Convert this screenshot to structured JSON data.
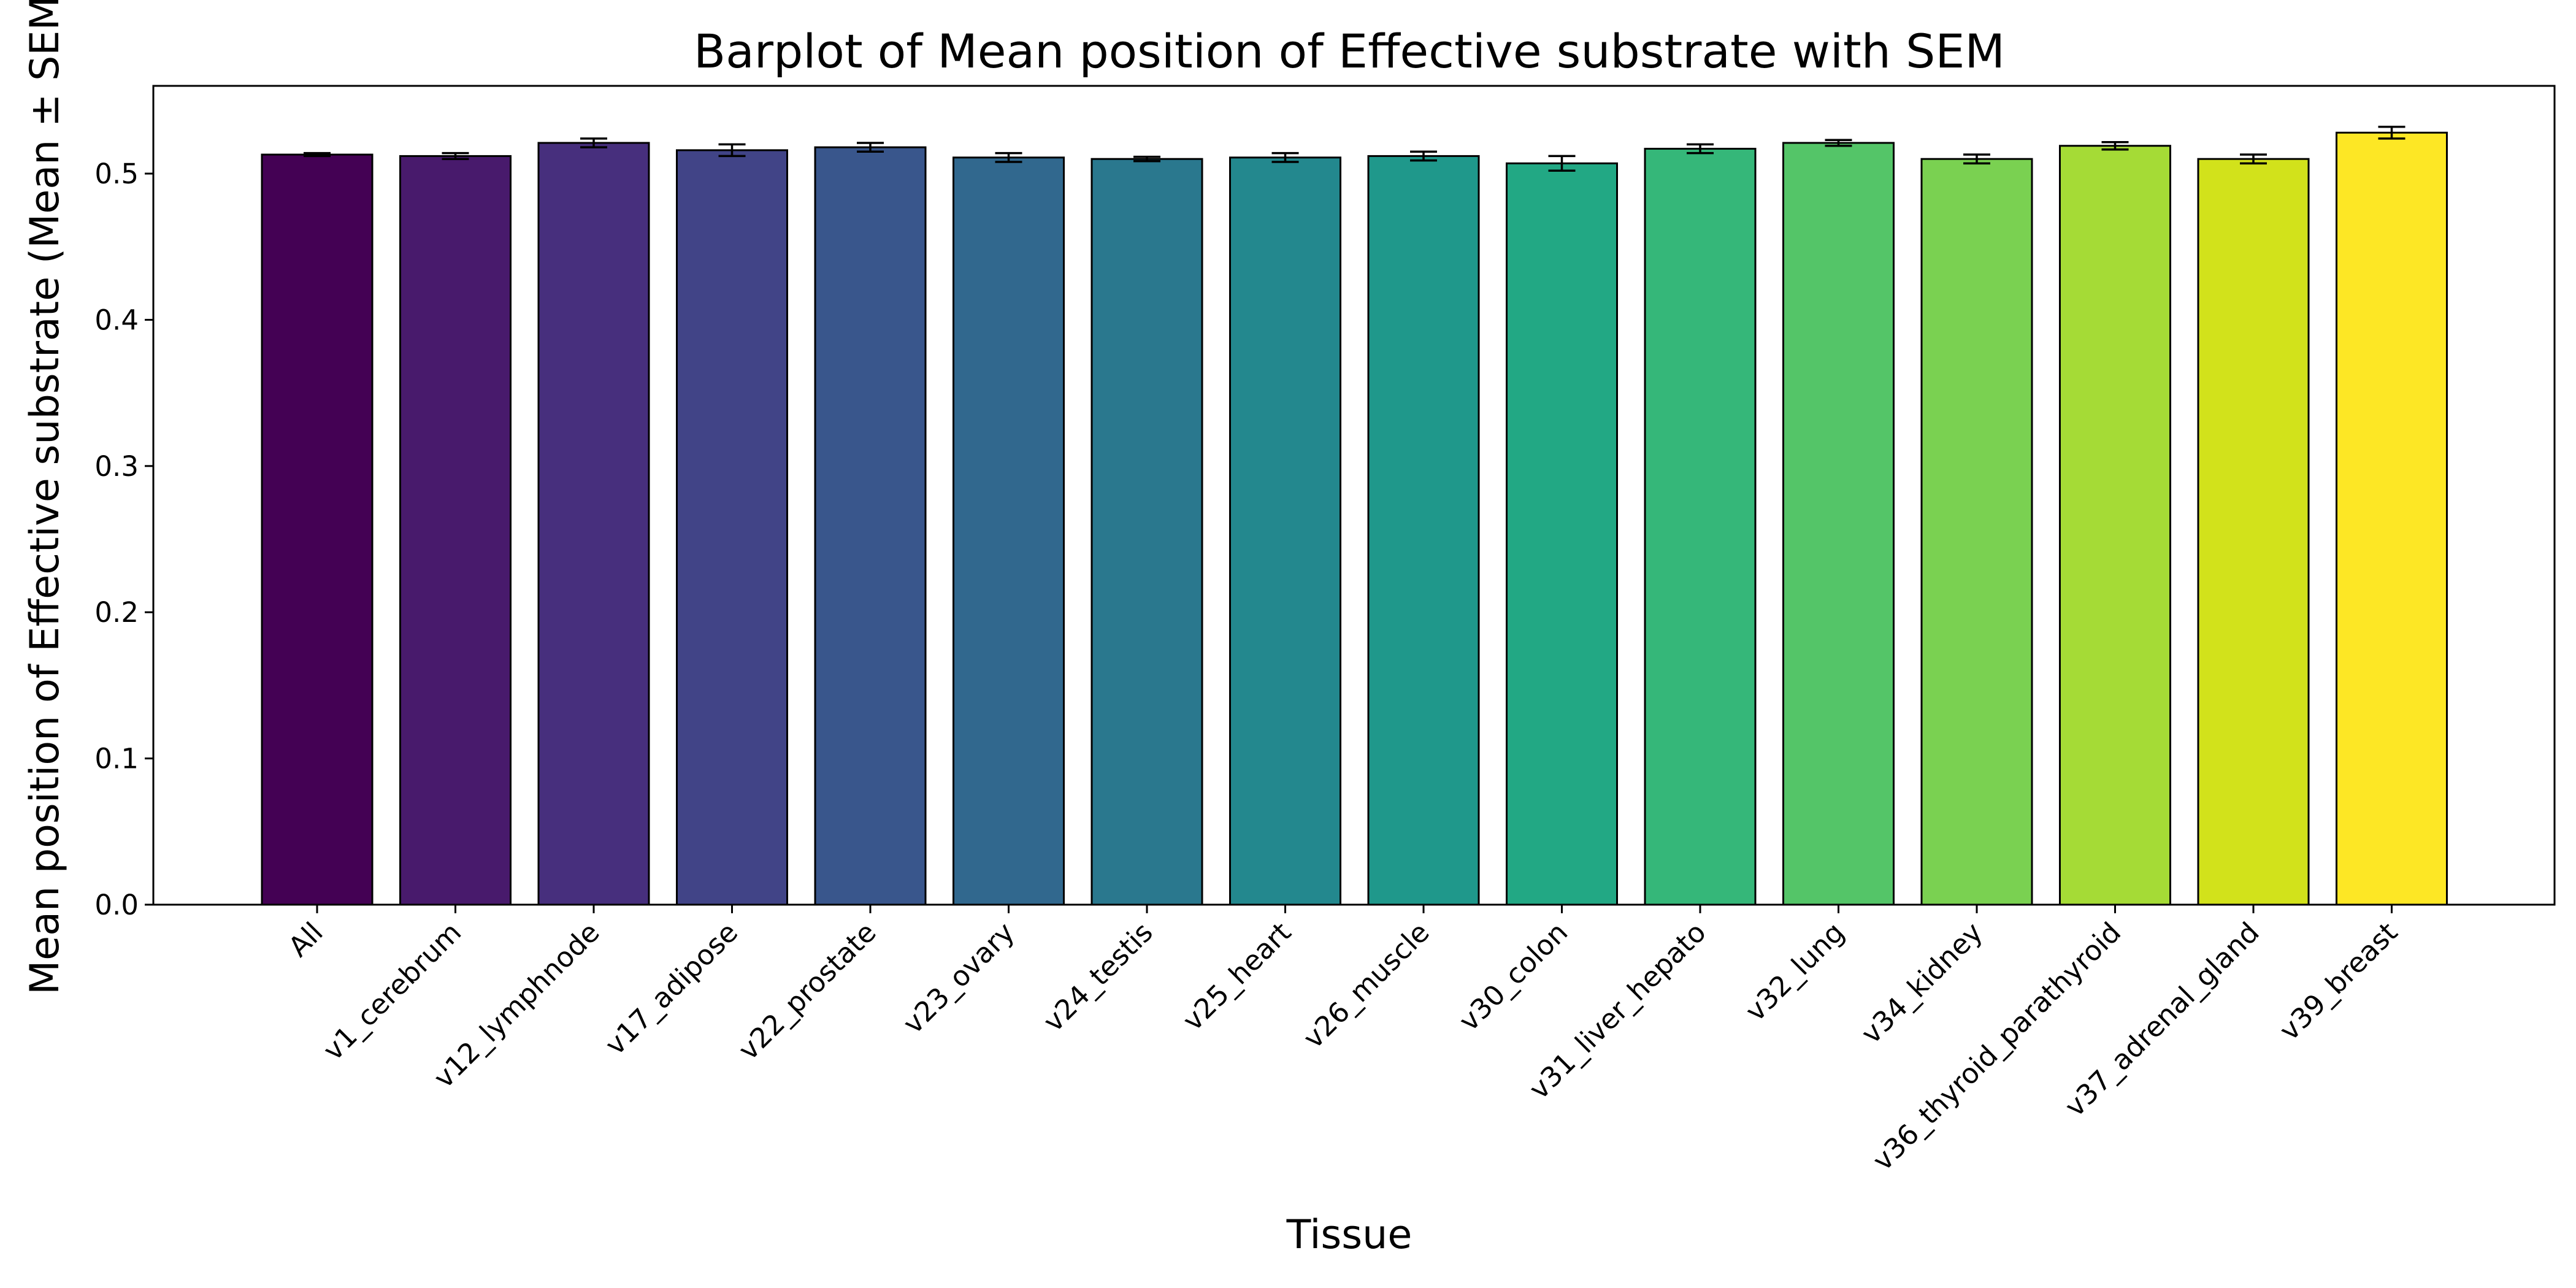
{
  "chart_data": {
    "type": "bar",
    "title": "Barplot of Mean position of Effective substrate with SEM",
    "xlabel": "Tissue",
    "ylabel": "Mean position of Effective substrate (Mean ± SEM)",
    "ylim": [
      0,
      0.56
    ],
    "yticks": [
      "0.0",
      "0.1",
      "0.2",
      "0.3",
      "0.4",
      "0.5"
    ],
    "categories": [
      "All",
      "v1_cerebrum",
      "v12_lymphnode",
      "v17_adipose",
      "v22_prostate",
      "v23_ovary",
      "v24_testis",
      "v25_heart",
      "v26_muscle",
      "v30_colon",
      "v31_liver_hepato",
      "v32_lung",
      "v34_kidney",
      "v36_thyroid_parathyroid",
      "v37_adrenal_gland",
      "v39_breast"
    ],
    "values": [
      0.513,
      0.512,
      0.521,
      0.516,
      0.518,
      0.511,
      0.51,
      0.511,
      0.512,
      0.507,
      0.517,
      0.521,
      0.51,
      0.519,
      0.51,
      0.528
    ],
    "errors": [
      0.001,
      0.002,
      0.003,
      0.004,
      0.003,
      0.003,
      0.0015,
      0.003,
      0.003,
      0.005,
      0.003,
      0.002,
      0.003,
      0.0025,
      0.003,
      0.004
    ],
    "colors": [
      "#440154",
      "#481a6c",
      "#472f7d",
      "#414487",
      "#39568c",
      "#31688e",
      "#2a788e",
      "#23888e",
      "#1f988b",
      "#22a884",
      "#35b779",
      "#54c568",
      "#7ad151",
      "#a5db36",
      "#d2e21b",
      "#fde725"
    ],
    "grid": false,
    "legend": "none"
  }
}
